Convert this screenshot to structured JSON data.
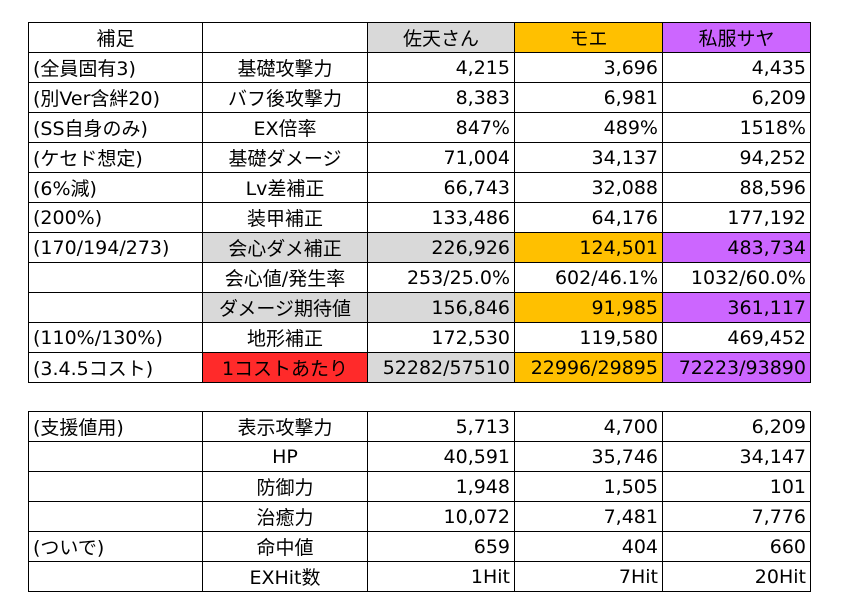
{
  "main": {
    "header": {
      "note": "補足",
      "label": "",
      "col1": "佐天さん",
      "col2": "モエ",
      "col3": "私服サヤ"
    },
    "rows": [
      {
        "note": "(全員固有3)",
        "label": "基礎攻撃力",
        "v1": "4,215",
        "v2": "3,696",
        "v3": "4,435"
      },
      {
        "note": "(別Ver含絆20)",
        "label": "バフ後攻撃力",
        "v1": "8,383",
        "v2": "6,981",
        "v3": "6,209"
      },
      {
        "note": "(SS自身のみ)",
        "label": "EX倍率",
        "v1": "847%",
        "v2": "489%",
        "v3": "1518%"
      },
      {
        "note": "(ケセド想定)",
        "label": "基礎ダメージ",
        "v1": "71,004",
        "v2": "34,137",
        "v3": "94,252"
      },
      {
        "note": "(6%減)",
        "label": "Lv差補正",
        "v1": "66,743",
        "v2": "32,088",
        "v3": "88,596"
      },
      {
        "note": "(200%)",
        "label": "装甲補正",
        "v1": "133,486",
        "v2": "64,176",
        "v3": "177,192"
      },
      {
        "note": "(170/194/273)",
        "label": "会心ダメ補正",
        "v1": "226,926",
        "v2": "124,501",
        "v3": "483,734"
      },
      {
        "note": "",
        "label": "会心値/発生率",
        "v1": "253/25.0%",
        "v2": "602/46.1%",
        "v3": "1032/60.0%"
      },
      {
        "note": "",
        "label": "ダメージ期待値",
        "v1": "156,846",
        "v2": "91,985",
        "v3": "361,117"
      },
      {
        "note": "(110%/130%)",
        "label": "地形補正",
        "v1": "172,530",
        "v2": "119,580",
        "v3": "469,452"
      },
      {
        "note": "(3.4.5コスト)",
        "label": "1コストあたり",
        "v1": "52282/57510",
        "v2": "22996/29895",
        "v3": "72223/93890"
      }
    ]
  },
  "support": {
    "rows": [
      {
        "note": "(支援値用)",
        "label": "表示攻撃力",
        "v1": "5,713",
        "v2": "4,700",
        "v3": "6,209"
      },
      {
        "note": "",
        "label": "HP",
        "v1": "40,591",
        "v2": "35,746",
        "v3": "34,147"
      },
      {
        "note": "",
        "label": "防御力",
        "v1": "1,948",
        "v2": "1,505",
        "v3": "101"
      },
      {
        "note": "",
        "label": "治癒力",
        "v1": "10,072",
        "v2": "7,481",
        "v3": "7,776"
      },
      {
        "note": "(ついで)",
        "label": "命中値",
        "v1": "659",
        "v2": "404",
        "v3": "660"
      },
      {
        "note": "",
        "label": "EXHit数",
        "v1": "1Hit",
        "v2": "7Hit",
        "v3": "20Hit"
      }
    ]
  },
  "colors": {
    "gray": "#d9d9d9",
    "gold": "#ffc000",
    "purple": "#cc66ff",
    "red": "#ff2a2a"
  }
}
